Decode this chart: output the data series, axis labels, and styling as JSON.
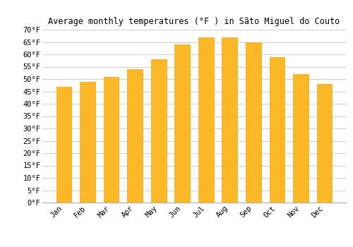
{
  "months": [
    "Jan",
    "Feb",
    "Mar",
    "Apr",
    "May",
    "Jun",
    "Jul",
    "Aug",
    "Sep",
    "Oct",
    "Nov",
    "Dec"
  ],
  "values": [
    47,
    49,
    51,
    54,
    58,
    64,
    67,
    67,
    65,
    59,
    52,
    48
  ],
  "bar_color": "#FDB827",
  "bar_edge_color": "#F0A500",
  "title": "Average monthly temperatures (°F ) in Sãto Miguel do Couto",
  "ylim": [
    0,
    70
  ],
  "ytick_step": 5,
  "background_color": "#ffffff",
  "grid_color": "#cccccc",
  "title_fontsize": 8.5,
  "tick_fontsize": 7.5,
  "font_family": "monospace"
}
